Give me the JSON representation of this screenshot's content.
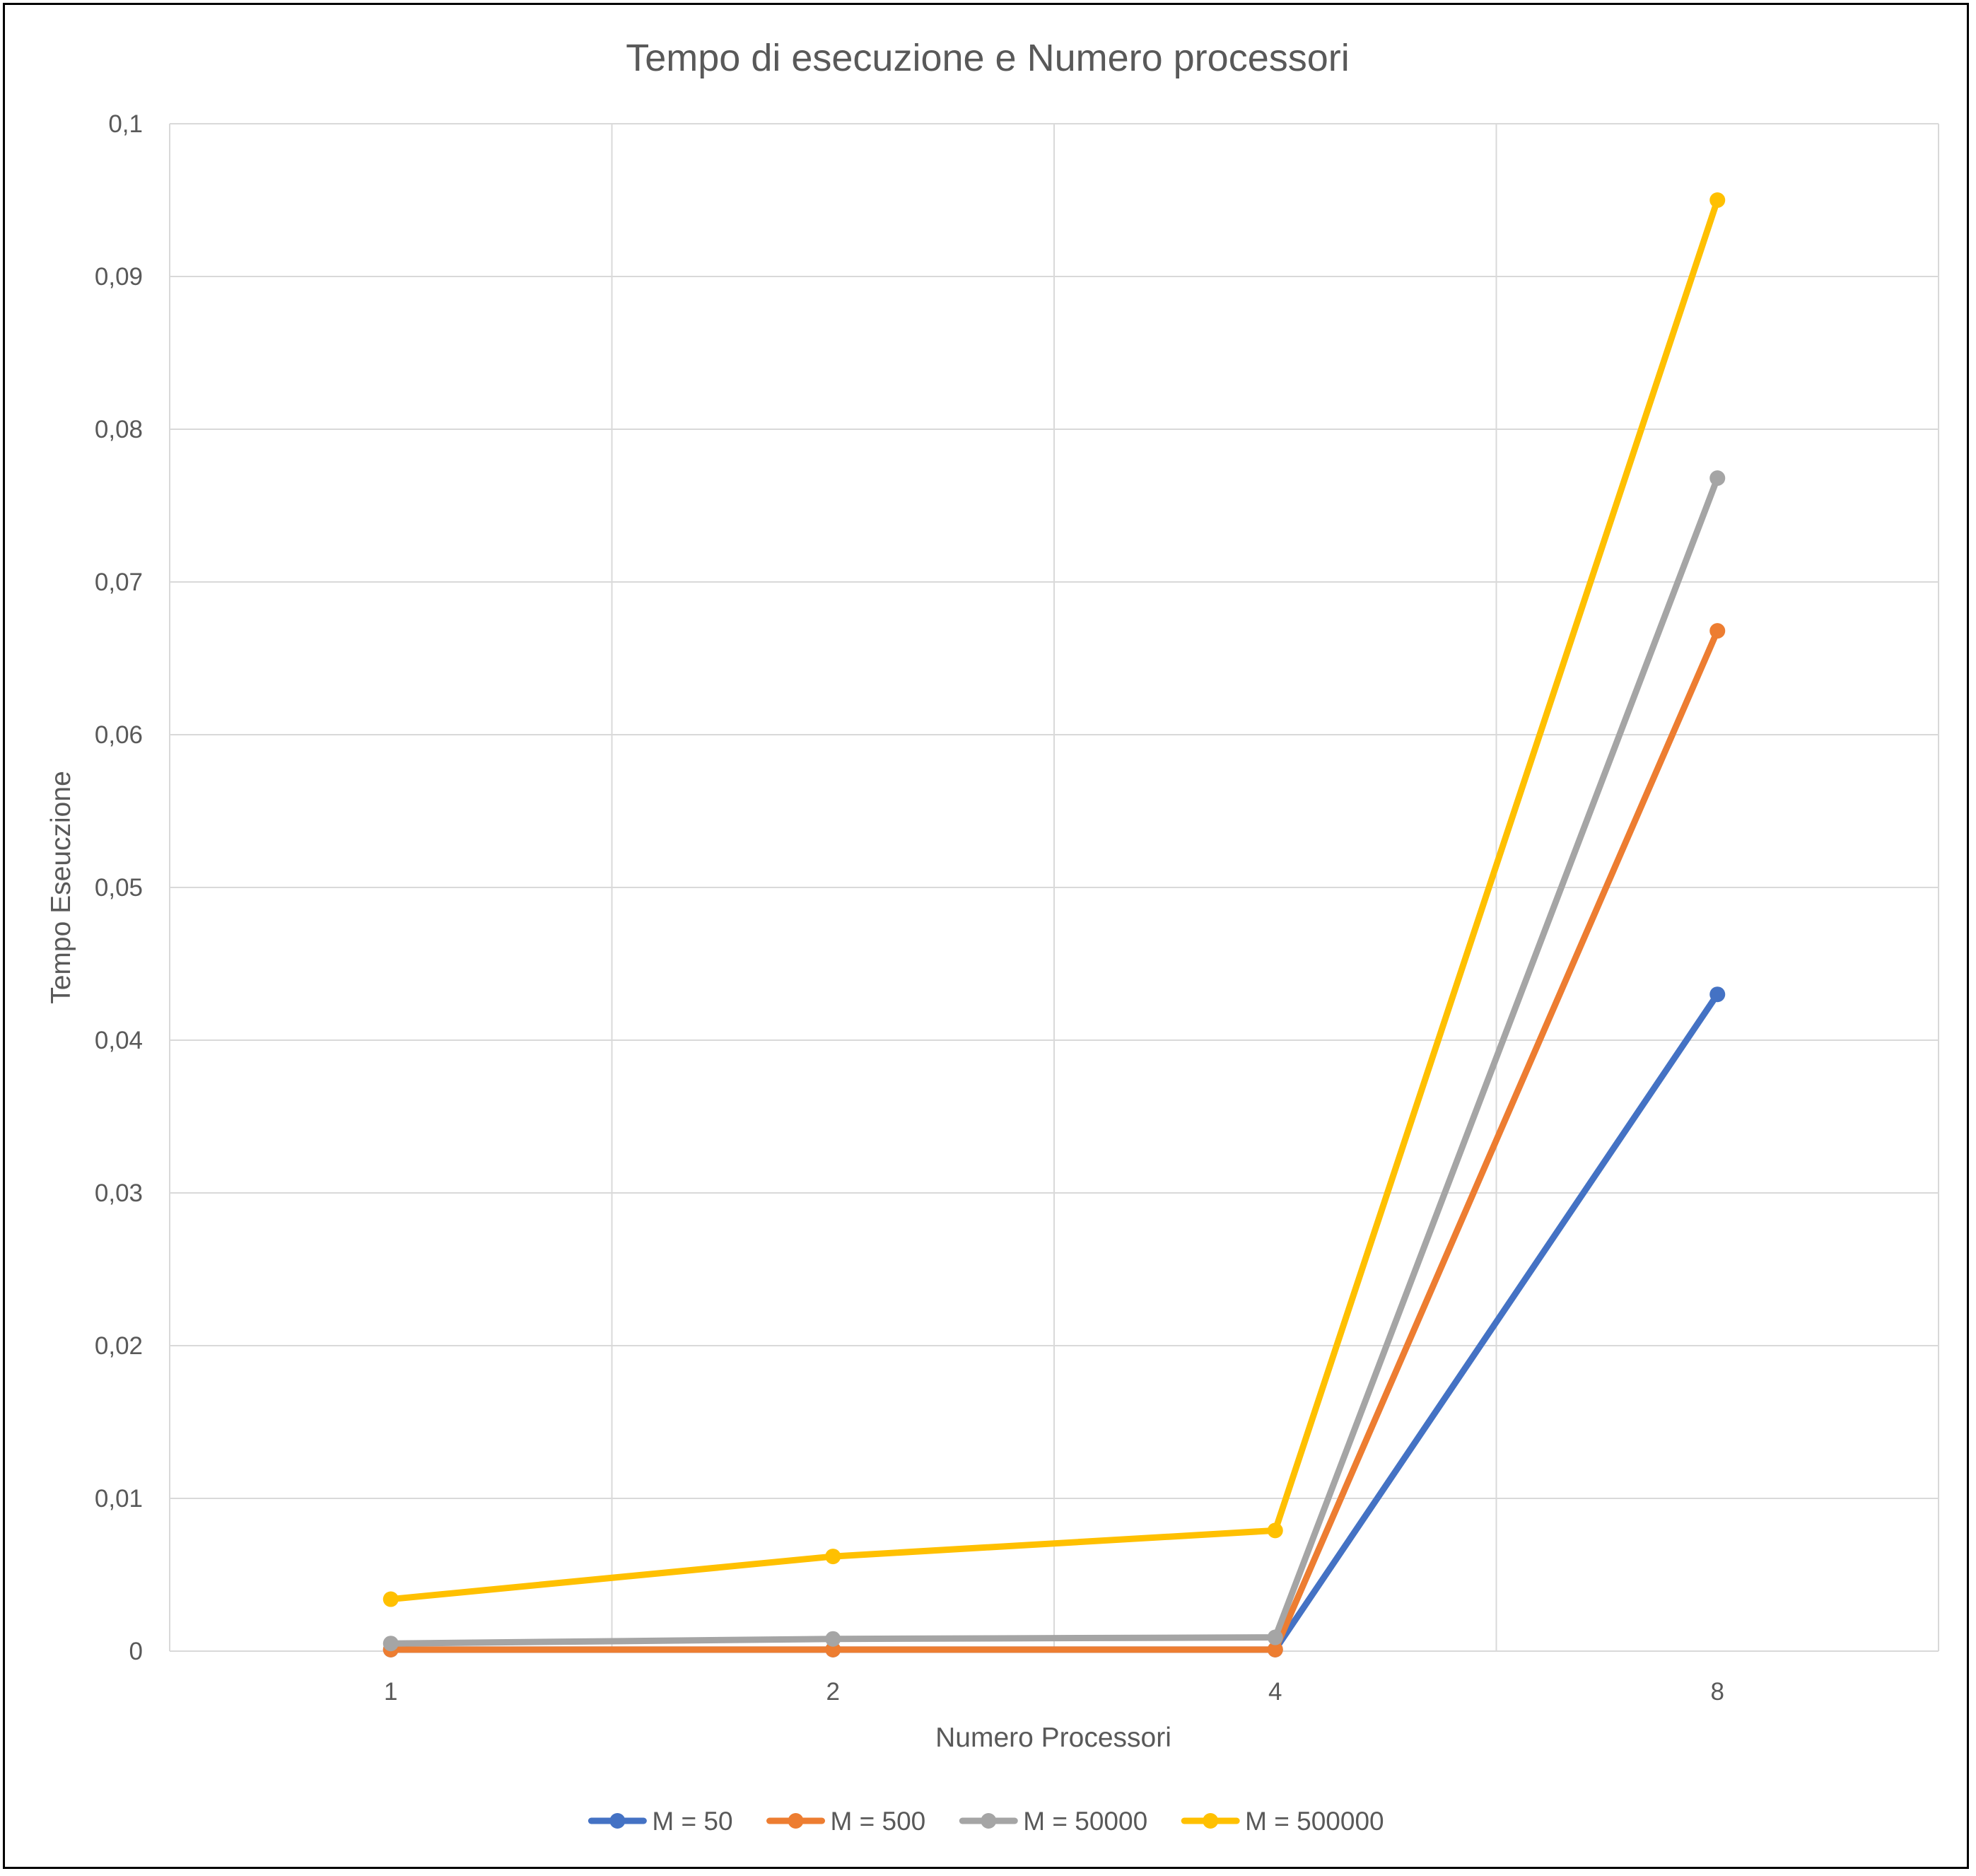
{
  "chart_data": {
    "type": "line",
    "title": "Tempo di esecuzione e Numero processori",
    "xlabel": "Numero Processori",
    "ylabel": "Tempo Eseuczione",
    "categories": [
      "1",
      "2",
      "4",
      "8"
    ],
    "ylim": [
      0,
      0.1
    ],
    "yticks": [
      0,
      0.01,
      0.02,
      0.03,
      0.04,
      0.05,
      0.06,
      0.07,
      0.08,
      0.09,
      0.1
    ],
    "ytick_labels": [
      "0",
      "0,01",
      "0,02",
      "0,03",
      "0,04",
      "0,05",
      "0,06",
      "0,07",
      "0,08",
      "0,09",
      "0,1"
    ],
    "grid": true,
    "legend_position": "bottom",
    "series": [
      {
        "name": "M = 50",
        "color": "#4472C4",
        "values": [
          0.0001,
          0.0001,
          0.0001,
          0.043
        ]
      },
      {
        "name": "M = 500",
        "color": "#ED7D31",
        "values": [
          0.0001,
          0.0001,
          0.0001,
          0.0668
        ]
      },
      {
        "name": "M = 50000",
        "color": "#A5A5A5",
        "values": [
          0.0005,
          0.0008,
          0.0009,
          0.0768
        ]
      },
      {
        "name": "M = 500000",
        "color": "#FFC000",
        "values": [
          0.0034,
          0.0062,
          0.0079,
          0.095
        ]
      }
    ]
  }
}
